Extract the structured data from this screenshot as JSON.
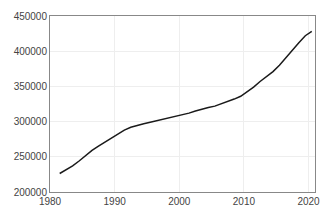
{
  "chart_data": {
    "type": "line",
    "x": [
      1981.5,
      1982.5,
      1983.5,
      1984.5,
      1985.5,
      1986.5,
      1987.5,
      1988.5,
      1989.5,
      1990.5,
      1991.5,
      1992.5,
      1993.5,
      1994.5,
      1995.5,
      1996.5,
      1997.5,
      1998.5,
      1999.5,
      2000.5,
      2001.5,
      2002.5,
      2003.5,
      2004.5,
      2005.5,
      2006.5,
      2007.5,
      2008.5,
      2009.5,
      2010.5,
      2011.5,
      2012.5,
      2013.5,
      2014.5,
      2015.5,
      2016.5,
      2017.5,
      2018.5,
      2019.5,
      2020.5
    ],
    "values": [
      226300,
      231500,
      237000,
      244000,
      252000,
      259000,
      265000,
      271000,
      277000,
      283000,
      288000,
      292000,
      295000,
      297000,
      299000,
      301000,
      303500,
      306000,
      308000,
      310000,
      312000,
      315000,
      318000,
      320000,
      322000,
      325000,
      328000,
      332000,
      336000,
      342000,
      349000,
      357000,
      364000,
      371000,
      380000,
      391000,
      402000,
      412000,
      422000,
      428000
    ],
    "color": "#1a1a1a",
    "xlim": [
      1980,
      2021
    ],
    "ylim": [
      200000,
      450000
    ],
    "xticks": [
      1980,
      1990,
      2000,
      2010,
      2020
    ],
    "yticks": [
      200000,
      250000,
      300000,
      350000,
      400000,
      450000
    ],
    "grid": true
  }
}
